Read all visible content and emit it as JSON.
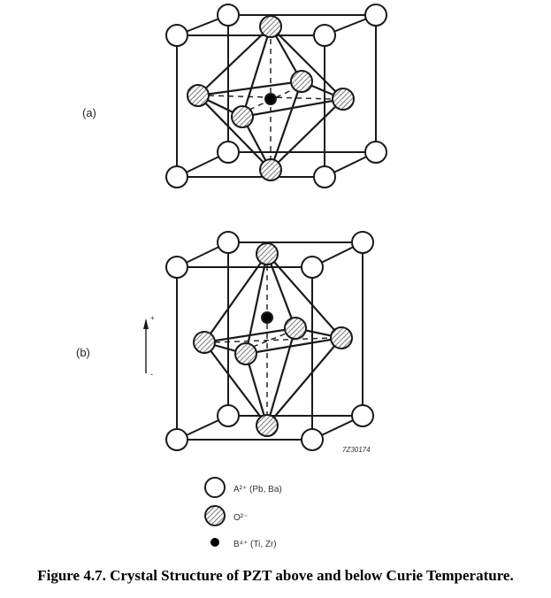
{
  "panels": {
    "a": {
      "label": "(a)"
    },
    "b": {
      "label": "(b)",
      "arrow_top": "+",
      "arrow_bottom": "-"
    }
  },
  "figure_code": "7Z30174",
  "legend": [
    {
      "symbol": "open-circle",
      "label": "A²⁺ (Pb, Ba)"
    },
    {
      "symbol": "hatched-circle",
      "label": "O²⁻"
    },
    {
      "symbol": "filled-dot",
      "label": "B⁴⁺ (Ti, Zr)"
    }
  ],
  "caption": "Figure 4.7. Crystal Structure of PZT above and below Curie Temperature.",
  "colors": {
    "line": "#1a1a1a",
    "atom_fill": "#ffffff",
    "hatch_fill": "#cfcfcf"
  }
}
